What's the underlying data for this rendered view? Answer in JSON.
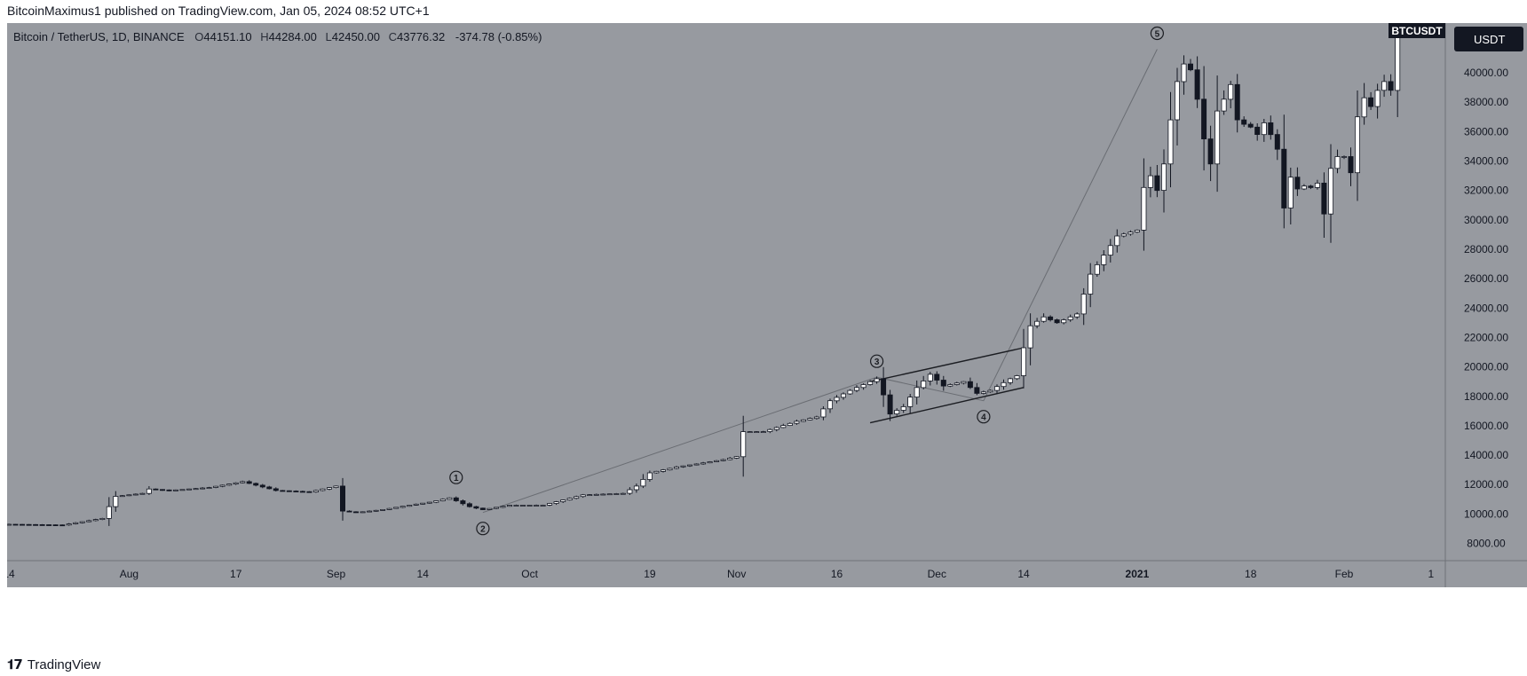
{
  "publish_line": "BitcoinMaximus1 published on TradingView.com, Jan 05, 2024 08:52 UTC+1",
  "footer": {
    "logo_icon": "tradingview-logo-icon",
    "brand": "TradingView"
  },
  "colors": {
    "pane_bg": "#979aa0",
    "up": "#ffffff",
    "down": "#131722",
    "line": "#1b1d22"
  },
  "header": {
    "symbol": "Bitcoin / TetherUS, 1D, BINANCE",
    "O_label": "O",
    "O": "44151.10",
    "H_label": "H",
    "H": "44284.00",
    "L_label": "L",
    "L": "42450.00",
    "C_label": "C",
    "C": "43776.32",
    "change": "-374.78 (-0.85%)"
  },
  "badges": {
    "ticker": "BTCUSDT",
    "currency": "USDT"
  },
  "chart_data": {
    "type": "candlestick",
    "ylim": [
      7000,
      43500
    ],
    "y_ticks": [
      "40000.00",
      "38000.00",
      "36000.00",
      "34000.00",
      "32000.00",
      "30000.00",
      "28000.00",
      "26000.00",
      "24000.00",
      "22000.00",
      "20000.00",
      "18000.00",
      "16000.00",
      "14000.00",
      "12000.00",
      "10000.00",
      "8000.00"
    ],
    "x_labels": [
      {
        "label": "14",
        "d": 0
      },
      {
        "label": "Aug",
        "d": 18
      },
      {
        "label": "17",
        "d": 34
      },
      {
        "label": "Sep",
        "d": 49
      },
      {
        "label": "14",
        "d": 62
      },
      {
        "label": "Oct",
        "d": 78
      },
      {
        "label": "19",
        "d": 96
      },
      {
        "label": "Nov",
        "d": 109
      },
      {
        "label": "16",
        "d": 124
      },
      {
        "label": "Dec",
        "d": 139
      },
      {
        "label": "14",
        "d": 152
      },
      {
        "label": "2021",
        "d": 169
      },
      {
        "label": "18",
        "d": 186
      },
      {
        "label": "Feb",
        "d": 200
      },
      {
        "label": "1",
        "d": 213
      }
    ],
    "waves": [
      {
        "label": "1",
        "d": 67,
        "price": 11400,
        "pos": "above"
      },
      {
        "label": "2",
        "d": 71,
        "price": 10100,
        "pos": "below"
      },
      {
        "label": "3",
        "d": 130,
        "price": 19300,
        "pos": "above"
      },
      {
        "label": "4",
        "d": 146,
        "price": 17700,
        "pos": "below"
      },
      {
        "label": "5",
        "d": 172,
        "price": 41600,
        "pos": "above"
      }
    ],
    "wave_path": [
      {
        "d": 71,
        "price": 10100
      },
      {
        "d": 130,
        "price": 19300
      },
      {
        "d": 146,
        "price": 17700
      },
      {
        "d": 172,
        "price": 41600
      }
    ],
    "channel": [
      {
        "from": {
          "d": 129,
          "price": 19000
        },
        "to": {
          "d": 152,
          "price": 21300
        }
      },
      {
        "from": {
          "d": 129,
          "price": 16200
        },
        "to": {
          "d": 152,
          "price": 18600
        }
      }
    ],
    "anchors": [
      {
        "d": 0,
        "price": 9300
      },
      {
        "d": 8,
        "price": 9250
      },
      {
        "d": 14,
        "price": 9700
      },
      {
        "d": 15,
        "price": 10500
      },
      {
        "d": 16,
        "price": 11200
      },
      {
        "d": 20,
        "price": 11400
      },
      {
        "d": 21,
        "price": 11700
      },
      {
        "d": 24,
        "price": 11600
      },
      {
        "d": 30,
        "price": 11800
      },
      {
        "d": 35,
        "price": 12200
      },
      {
        "d": 40,
        "price": 11600
      },
      {
        "d": 45,
        "price": 11500
      },
      {
        "d": 49,
        "price": 11900
      },
      {
        "d": 50,
        "price": 10200
      },
      {
        "d": 52,
        "price": 10100
      },
      {
        "d": 56,
        "price": 10300
      },
      {
        "d": 60,
        "price": 10600
      },
      {
        "d": 63,
        "price": 10800
      },
      {
        "d": 66,
        "price": 11100
      },
      {
        "d": 69,
        "price": 10500
      },
      {
        "d": 71,
        "price": 10300
      },
      {
        "d": 75,
        "price": 10600
      },
      {
        "d": 80,
        "price": 10600
      },
      {
        "d": 86,
        "price": 11300
      },
      {
        "d": 92,
        "price": 11400
      },
      {
        "d": 94,
        "price": 11900
      },
      {
        "d": 96,
        "price": 12800
      },
      {
        "d": 100,
        "price": 13200
      },
      {
        "d": 103,
        "price": 13400
      },
      {
        "d": 107,
        "price": 13700
      },
      {
        "d": 109,
        "price": 13900
      },
      {
        "d": 110,
        "price": 15600
      },
      {
        "d": 113,
        "price": 15600
      },
      {
        "d": 118,
        "price": 16300
      },
      {
        "d": 121,
        "price": 16600
      },
      {
        "d": 123,
        "price": 17700
      },
      {
        "d": 126,
        "price": 18400
      },
      {
        "d": 130,
        "price": 19200
      },
      {
        "d": 131,
        "price": 18100
      },
      {
        "d": 132,
        "price": 16800
      },
      {
        "d": 134,
        "price": 17300
      },
      {
        "d": 136,
        "price": 18600
      },
      {
        "d": 138,
        "price": 19500
      },
      {
        "d": 140,
        "price": 18700
      },
      {
        "d": 143,
        "price": 19000
      },
      {
        "d": 145,
        "price": 18200
      },
      {
        "d": 147,
        "price": 18400
      },
      {
        "d": 150,
        "price": 19200
      },
      {
        "d": 151,
        "price": 19400
      },
      {
        "d": 152,
        "price": 21300
      },
      {
        "d": 153,
        "price": 22800
      },
      {
        "d": 155,
        "price": 23400
      },
      {
        "d": 157,
        "price": 23000
      },
      {
        "d": 160,
        "price": 23600
      },
      {
        "d": 162,
        "price": 26300
      },
      {
        "d": 166,
        "price": 28900
      },
      {
        "d": 169,
        "price": 29300
      },
      {
        "d": 170,
        "price": 32200
      },
      {
        "d": 171,
        "price": 33000
      },
      {
        "d": 172,
        "price": 32000
      },
      {
        "d": 173,
        "price": 33800
      },
      {
        "d": 174,
        "price": 36800
      },
      {
        "d": 175,
        "price": 39400
      },
      {
        "d": 176,
        "price": 40600
      },
      {
        "d": 177,
        "price": 40200
      },
      {
        "d": 178,
        "price": 38200
      },
      {
        "d": 179,
        "price": 35500
      },
      {
        "d": 180,
        "price": 33800
      },
      {
        "d": 181,
        "price": 37400
      },
      {
        "d": 182,
        "price": 38200
      },
      {
        "d": 183,
        "price": 39200
      },
      {
        "d": 184,
        "price": 36800
      },
      {
        "d": 185,
        "price": 36500
      },
      {
        "d": 186,
        "price": 36300
      },
      {
        "d": 187,
        "price": 35800
      },
      {
        "d": 188,
        "price": 36600
      },
      {
        "d": 189,
        "price": 35800
      },
      {
        "d": 190,
        "price": 34800
      },
      {
        "d": 191,
        "price": 30800
      },
      {
        "d": 192,
        "price": 32900
      },
      {
        "d": 193,
        "price": 32100
      },
      {
        "d": 194,
        "price": 32300
      },
      {
        "d": 195,
        "price": 32200
      },
      {
        "d": 196,
        "price": 32500
      },
      {
        "d": 197,
        "price": 30400
      },
      {
        "d": 198,
        "price": 33500
      },
      {
        "d": 199,
        "price": 34300
      },
      {
        "d": 200,
        "price": 34300
      },
      {
        "d": 201,
        "price": 33200
      },
      {
        "d": 202,
        "price": 37000
      },
      {
        "d": 203,
        "price": 38300
      },
      {
        "d": 204,
        "price": 37700
      },
      {
        "d": 205,
        "price": 38800
      },
      {
        "d": 206,
        "price": 39400
      },
      {
        "d": 207,
        "price": 38800
      },
      {
        "d": 208,
        "price": 43500
      }
    ]
  }
}
